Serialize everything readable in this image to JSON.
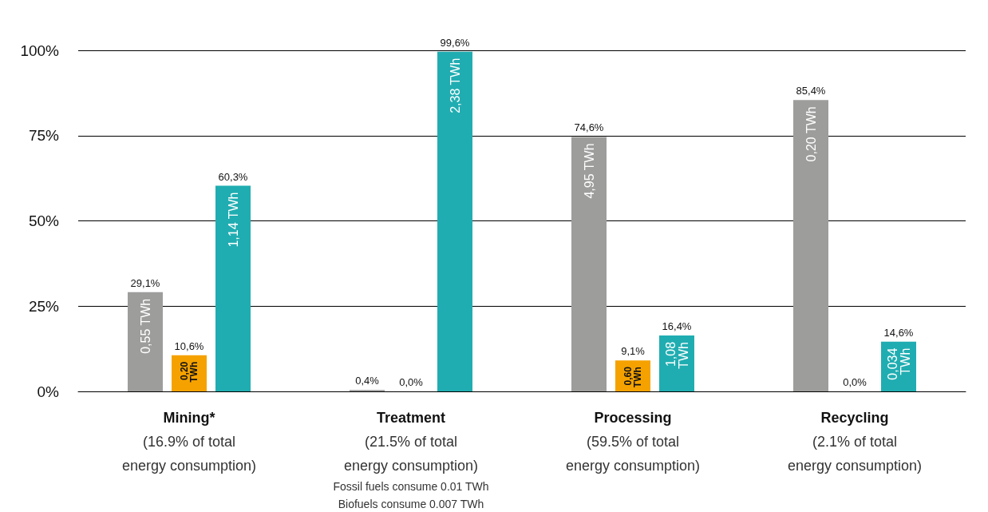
{
  "chart_data": {
    "type": "bar",
    "categories": [
      "Mining*\n(16.9% of total\nenergy consumption)",
      "Treatment\n(21.5% of total\nenergy consumption)",
      "Processing\n(59.5% of total\nenergy consumption)",
      "Recycling\n(2.1% of total\nenergy consumption)"
    ],
    "series": [
      {
        "color": "#9d9d9c",
        "values": [
          29.1,
          0.4,
          74.6,
          85.4
        ],
        "value_labels": [
          "29,1%",
          "0,4%",
          "74,6%",
          "85,4%"
        ]
      },
      {
        "color": "#f5a200",
        "values": [
          10.6,
          0.0,
          9.1,
          0.0
        ],
        "value_labels": [
          "10,6%",
          "0,0%",
          "9,1%",
          "0,0%"
        ]
      },
      {
        "color": "#20adb1",
        "values": [
          60.3,
          99.6,
          16.4,
          14.6
        ],
        "value_labels": [
          "60,3%",
          "99,6%",
          "16,4%",
          "14,6%"
        ]
      }
    ],
    "ylim": [
      0,
      100
    ],
    "yticks": [
      {
        "value": 0,
        "label": "0%"
      },
      {
        "value": 25,
        "label": "25%"
      },
      {
        "value": 50,
        "label": "50%"
      },
      {
        "value": 75,
        "label": "75%"
      },
      {
        "value": 100,
        "label": "100%"
      }
    ],
    "grid": "y",
    "annotations": [
      "0,55 TWh",
      "0,20 TWh",
      "1,14 TWh",
      "2,38 TWh",
      "4,95 TWh",
      "0,60 TWh",
      "1,08 TWh",
      "0,20 TWh",
      "0,034 TWh",
      "Fossil fuels consume 0.01 TWh",
      "Biofuels consume 0.007 TWh"
    ]
  }
}
